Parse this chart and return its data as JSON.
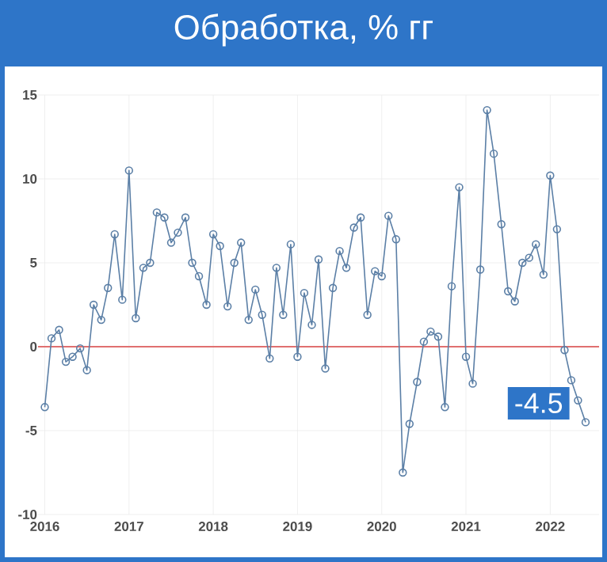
{
  "chart_data": {
    "type": "line",
    "title": "Обработка, % гг",
    "x": [
      "2016-01",
      "2016-02",
      "2016-03",
      "2016-04",
      "2016-05",
      "2016-06",
      "2016-07",
      "2016-08",
      "2016-09",
      "2016-10",
      "2016-11",
      "2016-12",
      "2017-01",
      "2017-02",
      "2017-03",
      "2017-04",
      "2017-05",
      "2017-06",
      "2017-07",
      "2017-08",
      "2017-09",
      "2017-10",
      "2017-11",
      "2017-12",
      "2018-01",
      "2018-02",
      "2018-03",
      "2018-04",
      "2018-05",
      "2018-06",
      "2018-07",
      "2018-08",
      "2018-09",
      "2018-10",
      "2018-11",
      "2018-12",
      "2019-01",
      "2019-02",
      "2019-03",
      "2019-04",
      "2019-05",
      "2019-06",
      "2019-07",
      "2019-08",
      "2019-09",
      "2019-10",
      "2019-11",
      "2019-12",
      "2020-01",
      "2020-02",
      "2020-03",
      "2020-04",
      "2020-05",
      "2020-06",
      "2020-07",
      "2020-08",
      "2020-09",
      "2020-10",
      "2020-11",
      "2020-12",
      "2021-01",
      "2021-02",
      "2021-03",
      "2021-04",
      "2021-05",
      "2021-06",
      "2021-07",
      "2021-08",
      "2021-09",
      "2021-10",
      "2021-11",
      "2021-12",
      "2022-01",
      "2022-02",
      "2022-03",
      "2022-04",
      "2022-05",
      "2022-06"
    ],
    "series": [
      {
        "color": "#5b7fa6",
        "values": [
          -3.6,
          0.5,
          1.0,
          -0.9,
          -0.6,
          -0.1,
          -1.4,
          2.5,
          1.6,
          3.5,
          6.7,
          2.8,
          10.5,
          1.7,
          4.7,
          5.0,
          8.0,
          7.7,
          6.2,
          6.8,
          7.7,
          5.0,
          4.2,
          2.5,
          6.7,
          6.0,
          2.4,
          5.0,
          6.2,
          1.6,
          3.4,
          1.9,
          -0.7,
          4.7,
          1.9,
          6.1,
          -0.6,
          3.2,
          1.3,
          5.2,
          -1.3,
          3.5,
          5.7,
          4.7,
          7.1,
          7.7,
          1.9,
          4.5,
          4.2,
          7.8,
          6.4,
          -7.5,
          -4.6,
          -2.1,
          0.3,
          0.9,
          0.6,
          -3.6,
          3.6,
          9.5,
          -0.6,
          -2.2,
          4.6,
          14.1,
          11.5,
          7.3,
          3.3,
          2.7,
          5.0,
          5.3,
          6.1,
          4.3,
          10.2,
          7.0,
          -0.2,
          -2.0,
          -3.2,
          -4.5
        ]
      }
    ],
    "xlim": [
      "2015-12",
      "2022-08"
    ],
    "xticks": [
      "2016",
      "2017",
      "2018",
      "2019",
      "2020",
      "2021",
      "2022"
    ],
    "ylim": [
      -10,
      15
    ],
    "yticks": [
      -10,
      -5,
      0,
      5,
      10,
      15
    ],
    "grid": true,
    "marker": "circle",
    "line_style": "solid",
    "ref_lines": [
      {
        "axis": "y",
        "value": 0,
        "color": "#e07070"
      }
    ],
    "annotations": [
      {
        "text": "-4.5",
        "x": "2022-06",
        "y": -4.5
      }
    ]
  }
}
